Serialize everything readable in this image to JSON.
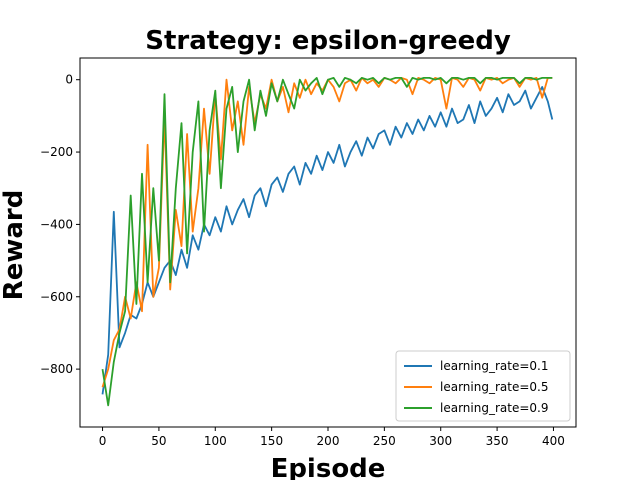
{
  "chart_data": {
    "type": "line",
    "title": "Strategy: epsilon-greedy",
    "xlabel": "Episode",
    "ylabel": "Reward",
    "xlim": [
      -20,
      420
    ],
    "ylim": [
      -960,
      60
    ],
    "xticks": [
      0,
      50,
      100,
      150,
      200,
      250,
      300,
      350,
      400
    ],
    "yticks": [
      -800,
      -600,
      -400,
      -200,
      0
    ],
    "grid": false,
    "legend_position": "lower-right",
    "series": [
      {
        "name": "learning_rate=0.1",
        "color": "#1f77b4",
        "x": [
          0,
          5,
          10,
          15,
          20,
          25,
          30,
          35,
          40,
          45,
          50,
          55,
          60,
          65,
          70,
          75,
          80,
          85,
          90,
          95,
          100,
          105,
          110,
          115,
          120,
          125,
          130,
          135,
          140,
          145,
          150,
          155,
          160,
          165,
          170,
          175,
          180,
          185,
          190,
          195,
          200,
          205,
          210,
          215,
          220,
          225,
          230,
          235,
          240,
          245,
          250,
          255,
          260,
          265,
          270,
          275,
          280,
          285,
          290,
          295,
          300,
          305,
          310,
          315,
          320,
          325,
          330,
          335,
          340,
          345,
          350,
          355,
          360,
          365,
          370,
          375,
          380,
          385,
          390,
          395,
          399
        ],
        "y": [
          -870,
          -760,
          -365,
          -740,
          -700,
          -650,
          -660,
          -620,
          -560,
          -600,
          -560,
          -520,
          -500,
          -540,
          -470,
          -520,
          -430,
          -470,
          -400,
          -430,
          -380,
          -420,
          -350,
          -400,
          -360,
          -330,
          -380,
          -320,
          -300,
          -350,
          -290,
          -270,
          -310,
          -260,
          -240,
          -290,
          -230,
          -260,
          -210,
          -250,
          -200,
          -230,
          -180,
          -240,
          -200,
          -170,
          -210,
          -160,
          -190,
          -150,
          -140,
          -180,
          -130,
          -160,
          -120,
          -150,
          -110,
          -140,
          -100,
          -130,
          -90,
          -130,
          -80,
          -120,
          -110,
          -70,
          -120,
          -60,
          -100,
          -80,
          -50,
          -90,
          -40,
          -70,
          -60,
          -30,
          -80,
          -50,
          -20,
          -60,
          -110
        ]
      },
      {
        "name": "learning_rate=0.5",
        "color": "#ff7f0e",
        "x": [
          0,
          5,
          10,
          15,
          20,
          25,
          30,
          35,
          40,
          45,
          50,
          55,
          60,
          65,
          70,
          75,
          80,
          85,
          90,
          95,
          100,
          105,
          110,
          115,
          120,
          125,
          130,
          135,
          140,
          145,
          150,
          155,
          160,
          165,
          170,
          175,
          180,
          185,
          190,
          195,
          200,
          205,
          210,
          215,
          220,
          225,
          230,
          235,
          240,
          245,
          250,
          255,
          260,
          265,
          270,
          275,
          280,
          285,
          290,
          295,
          300,
          305,
          310,
          315,
          320,
          325,
          330,
          335,
          340,
          345,
          350,
          355,
          360,
          365,
          370,
          375,
          380,
          385,
          390,
          395,
          399
        ],
        "y": [
          -850,
          -800,
          -720,
          -690,
          -600,
          -660,
          -560,
          -640,
          -180,
          -600,
          -520,
          -100,
          -580,
          -360,
          -460,
          -150,
          -420,
          -300,
          -80,
          -260,
          -40,
          -220,
          0,
          -140,
          -60,
          -180,
          -20,
          -120,
          -40,
          -80,
          0,
          -60,
          -20,
          -90,
          -10,
          -50,
          0,
          -40,
          -10,
          -30,
          0,
          -20,
          -60,
          -10,
          0,
          -30,
          5,
          -10,
          0,
          -20,
          5,
          0,
          -10,
          5,
          0,
          -40,
          5,
          0,
          -10,
          5,
          0,
          -80,
          5,
          0,
          -20,
          5,
          0,
          -30,
          5,
          0,
          5,
          -10,
          0,
          5,
          -20,
          5,
          0,
          5,
          -50,
          5,
          5
        ]
      },
      {
        "name": "learning_rate=0.9",
        "color": "#2ca02c",
        "x": [
          0,
          5,
          10,
          15,
          20,
          25,
          30,
          35,
          40,
          45,
          50,
          55,
          60,
          65,
          70,
          75,
          80,
          85,
          90,
          95,
          100,
          105,
          110,
          115,
          120,
          125,
          130,
          135,
          140,
          145,
          150,
          155,
          160,
          165,
          170,
          175,
          180,
          185,
          190,
          195,
          200,
          205,
          210,
          215,
          220,
          225,
          230,
          235,
          240,
          245,
          250,
          255,
          260,
          265,
          270,
          275,
          280,
          285,
          290,
          295,
          300,
          305,
          310,
          315,
          320,
          325,
          330,
          335,
          340,
          345,
          350,
          355,
          360,
          365,
          370,
          375,
          380,
          385,
          390,
          395,
          399
        ],
        "y": [
          -800,
          -900,
          -780,
          -700,
          -640,
          -320,
          -620,
          -260,
          -560,
          -300,
          -500,
          -40,
          -560,
          -300,
          -120,
          -480,
          -200,
          -60,
          -420,
          -140,
          -30,
          -300,
          -80,
          -20,
          -200,
          -60,
          0,
          -140,
          -30,
          -100,
          -10,
          -60,
          0,
          -40,
          -80,
          0,
          -30,
          -10,
          5,
          -40,
          0,
          5,
          -20,
          5,
          0,
          -10,
          5,
          0,
          5,
          -10,
          5,
          0,
          5,
          5,
          -20,
          5,
          0,
          5,
          5,
          0,
          5,
          -10,
          5,
          5,
          0,
          5,
          5,
          -10,
          5,
          5,
          0,
          5,
          5,
          5,
          -10,
          5,
          5,
          0,
          5,
          5,
          5
        ]
      }
    ]
  }
}
